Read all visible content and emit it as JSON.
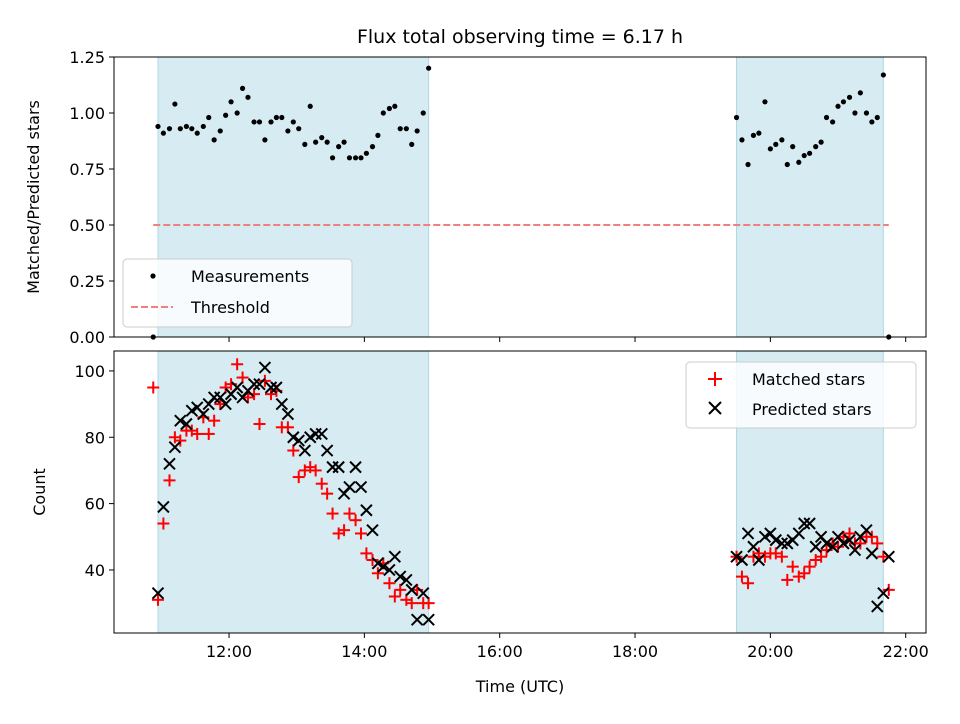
{
  "chart_data": [
    {
      "type": "scatter",
      "title": "Flux total observing time = 6.17 h",
      "xlabel": "",
      "ylabel": "Matched/Predicted stars",
      "xlim": [
        10.3,
        22.3
      ],
      "ylim": [
        0,
        1.25
      ],
      "yticks": [
        0,
        0.25,
        0.5,
        0.75,
        1.0,
        1.25
      ],
      "ytick_labels": [
        "0.00",
        "0.25",
        "0.50",
        "0.75",
        "1.00",
        "1.25"
      ],
      "xticks": [
        12,
        14,
        16,
        18,
        20,
        22
      ],
      "grid": false,
      "legend_position": "lower-left",
      "colors": {
        "shade": "#add8e6",
        "points": "#000000",
        "threshold": "#f08080"
      },
      "shaded_intervals": [
        [
          10.95,
          14.95
        ],
        [
          19.5,
          21.67
        ]
      ],
      "threshold": {
        "name": "Threshold",
        "y": 0.5,
        "x_range": [
          10.88,
          21.75
        ]
      },
      "series": [
        {
          "name": "Measurements",
          "x": [
            10.88,
            10.95,
            11.03,
            11.12,
            11.2,
            11.28,
            11.37,
            11.45,
            11.53,
            11.62,
            11.7,
            11.78,
            11.87,
            11.95,
            12.03,
            12.12,
            12.2,
            12.28,
            12.37,
            12.45,
            12.53,
            12.62,
            12.7,
            12.78,
            12.87,
            12.95,
            13.03,
            13.12,
            13.2,
            13.28,
            13.37,
            13.45,
            13.53,
            13.62,
            13.7,
            13.78,
            13.87,
            13.95,
            14.03,
            14.12,
            14.2,
            14.28,
            14.37,
            14.45,
            14.53,
            14.62,
            14.7,
            14.78,
            14.87,
            14.95,
            19.5,
            19.58,
            19.67,
            19.75,
            19.83,
            19.92,
            20.0,
            20.08,
            20.17,
            20.25,
            20.33,
            20.42,
            20.5,
            20.58,
            20.67,
            20.75,
            20.83,
            20.92,
            21.0,
            21.08,
            21.17,
            21.25,
            21.33,
            21.42,
            21.5,
            21.58,
            21.67,
            21.75
          ],
          "y": [
            0.0,
            0.94,
            0.91,
            0.93,
            1.04,
            0.93,
            0.94,
            0.93,
            0.91,
            0.94,
            0.98,
            0.88,
            0.92,
            0.99,
            1.05,
            1.0,
            1.11,
            1.07,
            0.96,
            0.96,
            0.88,
            0.96,
            0.98,
            0.98,
            0.92,
            0.96,
            0.93,
            0.86,
            1.03,
            0.87,
            0.89,
            0.87,
            0.8,
            0.85,
            0.87,
            0.8,
            0.8,
            0.8,
            0.82,
            0.85,
            0.9,
            1.0,
            1.02,
            1.03,
            0.93,
            0.93,
            0.86,
            0.92,
            1.0,
            1.2,
            0.98,
            0.88,
            0.77,
            0.9,
            0.91,
            1.05,
            0.84,
            0.86,
            0.88,
            0.77,
            0.85,
            0.78,
            0.81,
            0.82,
            0.85,
            0.87,
            0.98,
            0.96,
            1.03,
            1.05,
            1.07,
            1.0,
            1.09,
            1.0,
            0.96,
            0.98,
            1.17,
            0.0
          ]
        }
      ]
    },
    {
      "type": "scatter",
      "title": "",
      "xlabel": "Time (UTC)",
      "ylabel": "Count",
      "xlim": [
        10.3,
        22.3
      ],
      "ylim": [
        21,
        106
      ],
      "yticks": [
        40,
        60,
        80,
        100
      ],
      "ytick_labels": [
        "40",
        "60",
        "80",
        "100"
      ],
      "xticks": [
        12,
        14,
        16,
        18,
        20,
        22
      ],
      "xtick_labels": [
        "12:00",
        "14:00",
        "16:00",
        "18:00",
        "20:00",
        "22:00"
      ],
      "grid": false,
      "legend_position": "top-right",
      "colors": {
        "shade": "#add8e6",
        "matched": "#ff0000",
        "predicted": "#000000"
      },
      "shaded_intervals": [
        [
          10.95,
          14.95
        ],
        [
          19.5,
          21.67
        ]
      ],
      "series": [
        {
          "name": "Matched stars",
          "marker": "plus",
          "x": [
            10.88,
            10.95,
            11.03,
            11.12,
            11.2,
            11.28,
            11.37,
            11.45,
            11.53,
            11.62,
            11.7,
            11.78,
            11.87,
            11.95,
            12.03,
            12.12,
            12.2,
            12.28,
            12.37,
            12.45,
            12.53,
            12.62,
            12.7,
            12.78,
            12.87,
            12.95,
            13.03,
            13.12,
            13.2,
            13.28,
            13.37,
            13.45,
            13.53,
            13.62,
            13.7,
            13.78,
            13.87,
            13.95,
            14.03,
            14.12,
            14.2,
            14.28,
            14.37,
            14.45,
            14.53,
            14.62,
            14.7,
            14.78,
            14.87,
            14.95,
            19.5,
            19.58,
            19.67,
            19.75,
            19.83,
            19.92,
            20.0,
            20.08,
            20.17,
            20.25,
            20.33,
            20.42,
            20.5,
            20.58,
            20.67,
            20.75,
            20.83,
            20.92,
            21.0,
            21.08,
            21.17,
            21.25,
            21.33,
            21.42,
            21.5,
            21.58,
            21.67,
            21.75
          ],
          "y": [
            95,
            31,
            54,
            67,
            80,
            79,
            82,
            82,
            81,
            86,
            81,
            85,
            90,
            95,
            96,
            102,
            98,
            92,
            93,
            84,
            97,
            93,
            94,
            83,
            83,
            76,
            68,
            70,
            71,
            70,
            66,
            63,
            57,
            51,
            52,
            57,
            55,
            51,
            45,
            43,
            39,
            42,
            36,
            32,
            34,
            31,
            30,
            34,
            30,
            30,
            44,
            38,
            36,
            44,
            45,
            44,
            45,
            45,
            44,
            37,
            41,
            38,
            39,
            41,
            43,
            44,
            46,
            48,
            47,
            50,
            51,
            48,
            48,
            50,
            50,
            48,
            44,
            34
          ]
        },
        {
          "name": "Predicted stars",
          "marker": "x",
          "x": [
            10.95,
            11.03,
            11.12,
            11.2,
            11.28,
            11.37,
            11.45,
            11.53,
            11.62,
            11.7,
            11.78,
            11.87,
            11.95,
            12.03,
            12.12,
            12.2,
            12.28,
            12.37,
            12.45,
            12.53,
            12.62,
            12.7,
            12.78,
            12.87,
            12.95,
            13.03,
            13.12,
            13.2,
            13.28,
            13.37,
            13.45,
            13.53,
            13.62,
            13.7,
            13.78,
            13.87,
            13.95,
            14.03,
            14.12,
            14.2,
            14.28,
            14.37,
            14.45,
            14.53,
            14.62,
            14.7,
            14.78,
            14.87,
            14.95,
            19.5,
            19.58,
            19.67,
            19.75,
            19.83,
            19.92,
            20.0,
            20.08,
            20.17,
            20.25,
            20.33,
            20.42,
            20.5,
            20.58,
            20.67,
            20.75,
            20.83,
            20.92,
            21.0,
            21.08,
            21.17,
            21.25,
            21.33,
            21.42,
            21.5,
            21.58,
            21.67,
            21.75
          ],
          "y": [
            33,
            59,
            72,
            77,
            85,
            84,
            88,
            89,
            87,
            90,
            92,
            92,
            90,
            93,
            95,
            92,
            94,
            96,
            96,
            101,
            95,
            95,
            90,
            87,
            80,
            79,
            76,
            80,
            81,
            81,
            76,
            71,
            71,
            63,
            65,
            71,
            65,
            58,
            52,
            42,
            41,
            40,
            44,
            38,
            37,
            34,
            25,
            33,
            25,
            44,
            43,
            51,
            47,
            43,
            50,
            51,
            49,
            48,
            48,
            49,
            51,
            54,
            54,
            47,
            50,
            48,
            47,
            50,
            48,
            49,
            46,
            50,
            52,
            45,
            29,
            33,
            44
          ]
        }
      ]
    }
  ]
}
